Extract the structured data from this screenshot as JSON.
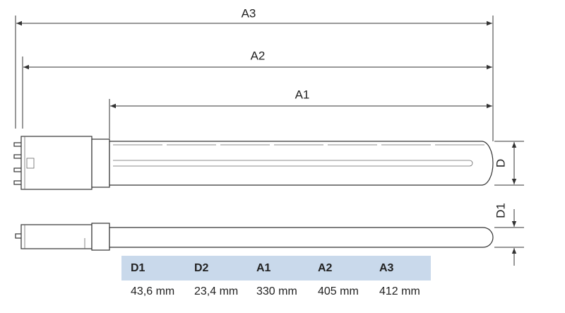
{
  "dimensions": {
    "a3": "A3",
    "a2": "A2",
    "a1": "A1",
    "d": "D",
    "d1": "D1"
  },
  "table": {
    "headers": [
      "D1",
      "D2",
      "A1",
      "A2",
      "A3"
    ],
    "rows": [
      [
        "43,6 mm",
        "23,4 mm",
        "330 mm",
        "405 mm",
        "412 mm"
      ]
    ]
  }
}
